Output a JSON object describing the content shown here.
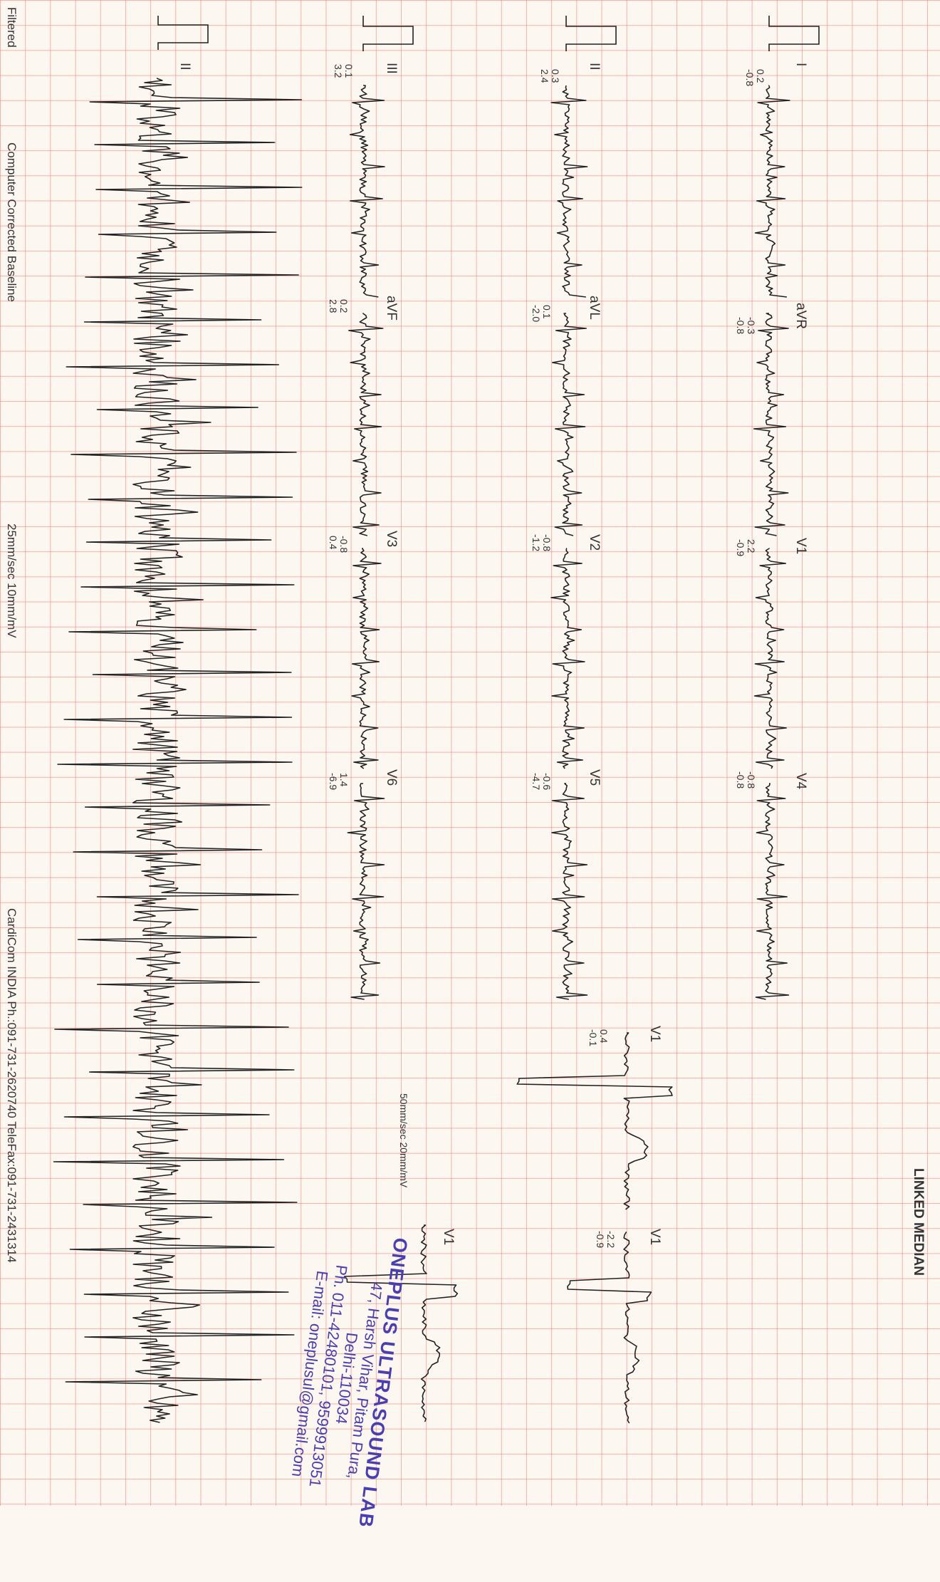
{
  "report": {
    "header_left": "Filtered",
    "header_center": "Computer Corrected Baseline",
    "speed": "25mm/sec  10mm/mV",
    "company": "CardiCom INDIA Ph.:091-731-2620740 TeleFax:091-731-2431314",
    "section_title": "LINKED MEDIAN",
    "median_speed": "50mm/sec 20mm/mV"
  },
  "leads": [
    {
      "id": "I",
      "label": "I",
      "values": [
        "0.2",
        "-0.8"
      ]
    },
    {
      "id": "aVR",
      "label": "aVR",
      "values": [
        "-0.3",
        "-0.8"
      ]
    },
    {
      "id": "V1",
      "label": "V1",
      "values": [
        "2.2",
        "-0.9"
      ]
    },
    {
      "id": "V4",
      "label": "V4",
      "values": [
        "-0.8",
        "-0.8"
      ]
    },
    {
      "id": "II",
      "label": "II",
      "values": [
        "0.3",
        "2.4"
      ]
    },
    {
      "id": "aVL",
      "label": "aVL",
      "values": [
        "0.1",
        "-2.0"
      ]
    },
    {
      "id": "V2",
      "label": "V2",
      "values": [
        "-0.8",
        "-1.2"
      ]
    },
    {
      "id": "V5",
      "label": "V5",
      "values": [
        "-0.6",
        "-4.7"
      ]
    },
    {
      "id": "III",
      "label": "III",
      "values": [
        "0.1",
        "3.2"
      ]
    },
    {
      "id": "aVF",
      "label": "aVF",
      "values": [
        "0.2",
        "2.8"
      ]
    },
    {
      "id": "V3",
      "label": "V3",
      "values": [
        "-0.8",
        "0.4"
      ]
    },
    {
      "id": "V6",
      "label": "V6",
      "values": [
        "1.4",
        "-6.9"
      ]
    },
    {
      "id": "II-rhythm",
      "label": "II",
      "values": []
    }
  ],
  "medians": [
    {
      "label": "V1",
      "values": [
        "0.4",
        "-0.1"
      ]
    },
    {
      "label": "V1",
      "values": [
        "-2.2",
        "-0.9"
      ]
    },
    {
      "label": "V1",
      "values": []
    }
  ],
  "stamp": {
    "name": "ONEPLUS ULTRASOUND LAB",
    "address": "47, Harsh Vihar, Pitam Pura,",
    "city": "Delhi-110034",
    "phone": "Ph. 011-42480101, 9599913051",
    "email": "E-mail: oneplusul@gmail.com"
  },
  "colors": {
    "grid": "#f0786a",
    "trace": "#222222",
    "stamp": "#4a3fb0",
    "paper": "#fdf7f2"
  }
}
